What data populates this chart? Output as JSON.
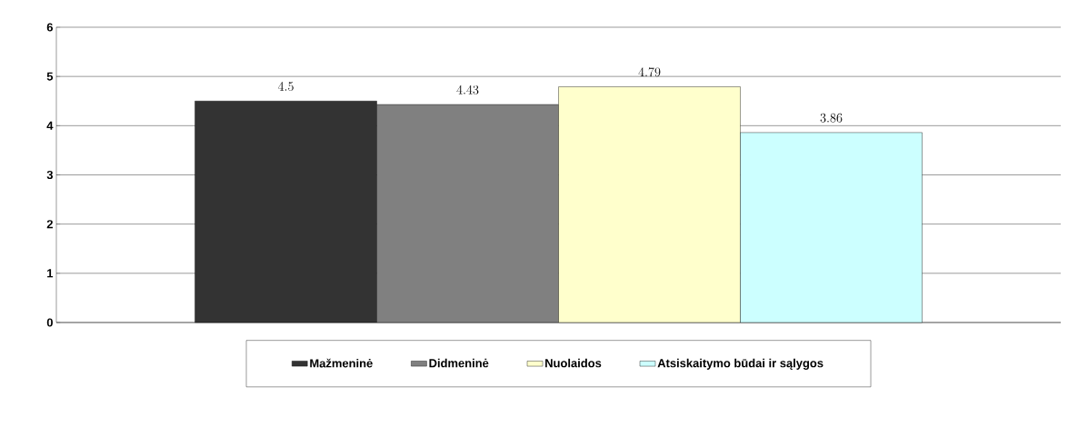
{
  "chart_data": {
    "type": "bar",
    "categories": [
      null
    ],
    "series": [
      {
        "name": "Mažmeninė",
        "color": "#333333",
        "values": [
          4.5
        ]
      },
      {
        "name": "Didmeninė",
        "color": "#808080",
        "values": [
          4.43
        ]
      },
      {
        "name": "Nuolaidos",
        "color": "#ffffcc",
        "values": [
          4.79
        ]
      },
      {
        "name": "Atsiskaitymo būdai ir sąlygos",
        "color": "#ccffff",
        "values": [
          3.86
        ]
      }
    ],
    "ylim": [
      0,
      6
    ],
    "yticks": [
      0,
      1,
      2,
      3,
      4,
      5,
      6
    ],
    "grid": "y",
    "legend": "bottom",
    "data_labels": true
  }
}
